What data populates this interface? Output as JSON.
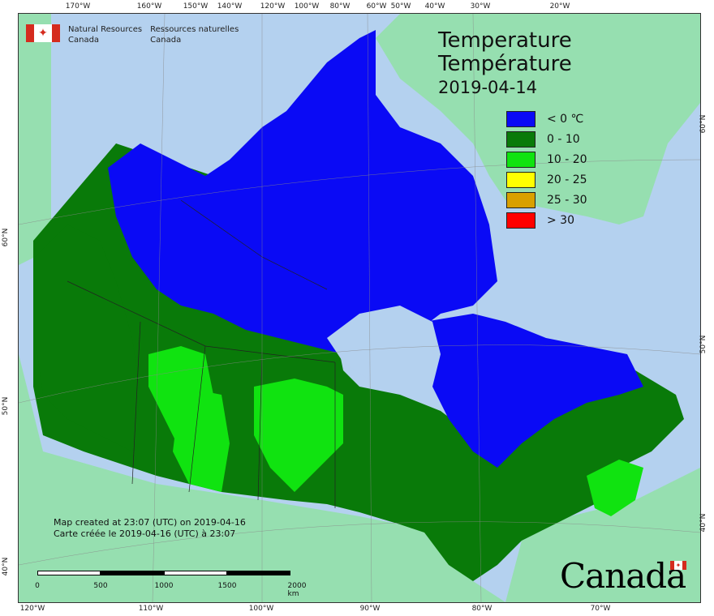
{
  "header": {
    "nrcan_en_line1": "Natural Resources",
    "nrcan_en_line2": "Canada",
    "nrcan_fr_line1": "Ressources naturelles",
    "nrcan_fr_line2": "Canada",
    "flag_icon": "canada-flag-icon"
  },
  "title": {
    "en": "Temperature",
    "fr": "Température",
    "date": "2019-04-14"
  },
  "legend": {
    "items": [
      {
        "label": "< 0 ℃",
        "color": "#0a0af5"
      },
      {
        "label": "0 - 10",
        "color": "#097a09"
      },
      {
        "label": "10 - 20",
        "color": "#10e310"
      },
      {
        "label": "20 - 25",
        "color": "#ffff00"
      },
      {
        "label": "25 - 30",
        "color": "#d9a000"
      },
      {
        "label": "> 30",
        "color": "#ff0000"
      }
    ]
  },
  "footer": {
    "created_en": "Map created at 23:07 (UTC) on 2019-04-16",
    "created_fr": "Carte créée le 2019-04-16 (UTC) à 23:07"
  },
  "scale": {
    "labels": [
      "0",
      "500",
      "1000",
      "1500",
      "2000  km"
    ]
  },
  "graticule": {
    "top": [
      "170°W",
      "160°W",
      "150°W",
      "140°W",
      "120°W",
      "100°W",
      "80°W",
      "60°W",
      "50°W",
      "40°W",
      "30°W",
      "20°W"
    ],
    "bottom": [
      "120°W",
      "110°W",
      "100°W",
      "90°W",
      "80°W",
      "70°W"
    ],
    "left": [
      "60°N",
      "50°N",
      "40°N"
    ],
    "right": [
      "60°N",
      "50°N",
      "40°N"
    ]
  },
  "wordmark": "Canada",
  "colors": {
    "water": "#b4d1ef",
    "land_other": "#96dfb0"
  }
}
